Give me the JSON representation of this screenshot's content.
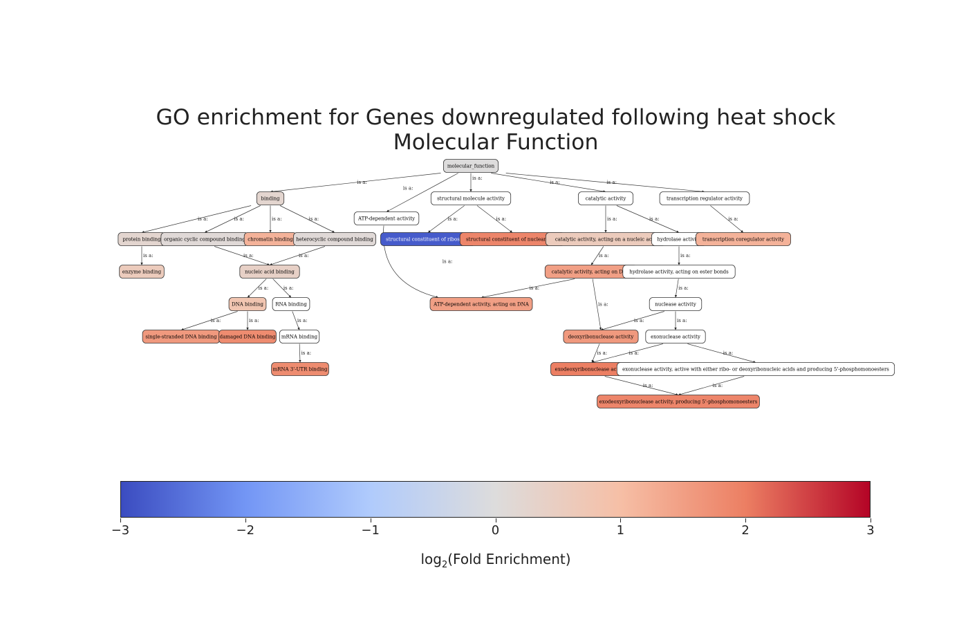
{
  "title": {
    "line1": "GO enrichment for Genes downregulated following heat shock",
    "line2": "Molecular Function"
  },
  "edge_label": "is a:",
  "nodes": [
    {
      "id": "mf",
      "label": "molecular_function",
      "log2fe": 0.0
    },
    {
      "id": "binding",
      "label": "binding",
      "log2fe": 0.25
    },
    {
      "id": "atp",
      "label": "ATP-dependent activity",
      "log2fe": null
    },
    {
      "id": "struct",
      "label": "structural molecule activity",
      "log2fe": null
    },
    {
      "id": "cat",
      "label": "catalytic activity",
      "log2fe": null
    },
    {
      "id": "treg",
      "label": "transcription regulator activity",
      "log2fe": null
    },
    {
      "id": "prot",
      "label": "protein binding",
      "log2fe": 0.25
    },
    {
      "id": "orgcyc",
      "label": "organic cyclic compound binding",
      "log2fe": 0.1
    },
    {
      "id": "chrom",
      "label": "chromatin binding",
      "log2fe": 1.2
    },
    {
      "id": "hetcyc",
      "label": "heterocyclic compound binding",
      "log2fe": 0.1
    },
    {
      "id": "ribo",
      "label": "structural constituent of ribosome",
      "log2fe": -2.8
    },
    {
      "id": "pore",
      "label": "structural constituent of nuclear pore",
      "log2fe": 1.9
    },
    {
      "id": "catna",
      "label": "catalytic activity, acting on a nucleic acid",
      "log2fe": 0.6
    },
    {
      "id": "hydro",
      "label": "hydrolase activity",
      "log2fe": null
    },
    {
      "id": "tcoreg",
      "label": "transcription coregulator activity",
      "log2fe": 1.2
    },
    {
      "id": "enz",
      "label": "enzyme binding",
      "log2fe": 0.6
    },
    {
      "id": "nab",
      "label": "nucleic acid binding",
      "log2fe": 0.4
    },
    {
      "id": "catdna",
      "label": "catalytic activity, acting on DNA",
      "log2fe": 1.5
    },
    {
      "id": "hester",
      "label": "hydrolase activity, acting on ester bonds",
      "log2fe": null
    },
    {
      "id": "dnab",
      "label": "DNA binding",
      "log2fe": 0.8
    },
    {
      "id": "rnab",
      "label": "RNA binding",
      "log2fe": null
    },
    {
      "id": "atpdna",
      "label": "ATP-dependent activity, acting on DNA",
      "log2fe": 1.5
    },
    {
      "id": "nucl",
      "label": "nuclease activity",
      "log2fe": null
    },
    {
      "id": "ssdna",
      "label": "single-stranded DNA binding",
      "log2fe": 1.6
    },
    {
      "id": "damdna",
      "label": "damaged DNA binding",
      "log2fe": 1.8
    },
    {
      "id": "mrnab",
      "label": "mRNA binding",
      "log2fe": null
    },
    {
      "id": "dnase",
      "label": "deoxyribonuclease activity",
      "log2fe": 1.6
    },
    {
      "id": "exo",
      "label": "exonuclease activity",
      "log2fe": null
    },
    {
      "id": "utr",
      "label": "mRNA 3'-UTR binding",
      "log2fe": 1.8
    },
    {
      "id": "exodnase",
      "label": "exodeoxyribonuclease activity",
      "log2fe": 2.0
    },
    {
      "id": "exoboth",
      "label": "exonuclease activity, active with either ribo- or deoxyribonucleic acids and producing 5'-phosphomonoesters",
      "log2fe": null
    },
    {
      "id": "exofinal",
      "label": "exodeoxyribonuclease activity, producing 5'-phosphomonoesters",
      "log2fe": 1.9
    }
  ],
  "edges": [
    {
      "from": "binding",
      "to": "mf"
    },
    {
      "from": "atp",
      "to": "mf"
    },
    {
      "from": "struct",
      "to": "mf"
    },
    {
      "from": "cat",
      "to": "mf"
    },
    {
      "from": "treg",
      "to": "mf"
    },
    {
      "from": "prot",
      "to": "binding"
    },
    {
      "from": "orgcyc",
      "to": "binding"
    },
    {
      "from": "chrom",
      "to": "binding"
    },
    {
      "from": "hetcyc",
      "to": "binding"
    },
    {
      "from": "ribo",
      "to": "struct"
    },
    {
      "from": "pore",
      "to": "struct"
    },
    {
      "from": "catna",
      "to": "cat"
    },
    {
      "from": "hydro",
      "to": "cat"
    },
    {
      "from": "tcoreg",
      "to": "treg"
    },
    {
      "from": "enz",
      "to": "prot"
    },
    {
      "from": "nab",
      "to": "orgcyc"
    },
    {
      "from": "nab",
      "to": "hetcyc"
    },
    {
      "from": "catdna",
      "to": "catna"
    },
    {
      "from": "hester",
      "to": "hydro"
    },
    {
      "from": "dnab",
      "to": "nab"
    },
    {
      "from": "rnab",
      "to": "nab"
    },
    {
      "from": "atpdna",
      "to": "atp"
    },
    {
      "from": "atpdna",
      "to": "catdna"
    },
    {
      "from": "nucl",
      "to": "hester"
    },
    {
      "from": "ssdna",
      "to": "dnab"
    },
    {
      "from": "damdna",
      "to": "dnab"
    },
    {
      "from": "mrnab",
      "to": "rnab"
    },
    {
      "from": "dnase",
      "to": "catdna"
    },
    {
      "from": "dnase",
      "to": "nucl"
    },
    {
      "from": "exo",
      "to": "nucl"
    },
    {
      "from": "utr",
      "to": "mrnab"
    },
    {
      "from": "exodnase",
      "to": "dnase"
    },
    {
      "from": "exodnase",
      "to": "exo"
    },
    {
      "from": "exoboth",
      "to": "exo"
    },
    {
      "from": "exofinal",
      "to": "exodnase"
    },
    {
      "from": "exofinal",
      "to": "exoboth"
    }
  ],
  "colorbar": {
    "colormap": "coolwarm",
    "min": -3,
    "max": 3,
    "stops": [
      "#3b4cc0",
      "#7396f5",
      "#b0cbfc",
      "#dddcdc",
      "#f6bfa6",
      "#ec7f63",
      "#b40426"
    ],
    "unfilled_color": "#ffffff",
    "ticks": [
      {
        "value": -3,
        "label": "−3"
      },
      {
        "value": -2,
        "label": "−2"
      },
      {
        "value": -1,
        "label": "−1"
      },
      {
        "value": 0,
        "label": "0"
      },
      {
        "value": 1,
        "label": "1"
      },
      {
        "value": 2,
        "label": "2"
      },
      {
        "value": 3,
        "label": "3"
      }
    ],
    "label_main": "log",
    "label_sub": "2",
    "label_rest": "(Fold Enrichment)"
  }
}
